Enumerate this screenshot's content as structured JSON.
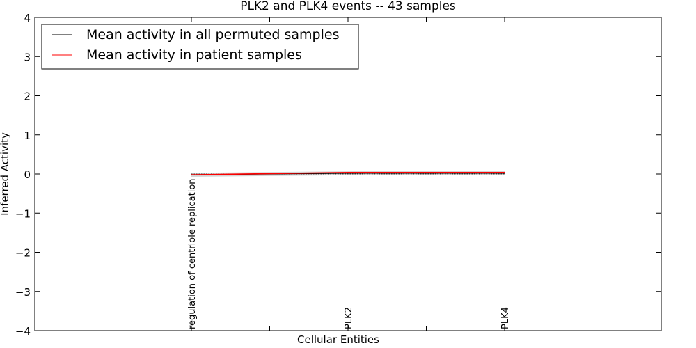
{
  "chart_data": {
    "type": "line",
    "title": "PLK2 and PLK4 events -- 43 samples",
    "xlabel": "Cellular Entities",
    "ylabel": "Inferred Activity",
    "ylim": [
      -4,
      4
    ],
    "xlim": [
      0,
      4
    ],
    "yticks": [
      4,
      3,
      2,
      1,
      0,
      -1,
      -2,
      -3,
      -4
    ],
    "ytick_labels": [
      "4",
      "3",
      "2",
      "1",
      "0",
      "−1",
      "−2",
      "−3",
      "−4"
    ],
    "xticks": [
      0.5,
      1,
      1.5,
      2,
      2.5,
      3,
      3.5
    ],
    "categories": [
      {
        "x": 1,
        "label": "regulation of centriole replication"
      },
      {
        "x": 2,
        "label": "PLK2"
      },
      {
        "x": 3,
        "label": "PLK4"
      }
    ],
    "series": [
      {
        "name": "Mean activity in all permuted samples",
        "color": "#000000",
        "x": [
          1,
          2,
          3
        ],
        "values": [
          -0.02,
          0.02,
          0.02
        ]
      },
      {
        "name": "Mean activity in patient samples",
        "color": "#ff0000",
        "x": [
          1,
          2,
          3
        ],
        "values": [
          -0.02,
          0.04,
          0.04
        ]
      }
    ],
    "band": {
      "x": [
        1,
        2,
        3
      ],
      "lower": [
        -0.07,
        -0.03,
        -0.03
      ],
      "upper": [
        0.03,
        0.07,
        0.08
      ],
      "color": "#c8c8c8"
    },
    "reference_line": 0,
    "legend": {
      "location": "top-left",
      "entries": [
        {
          "label": "Mean activity in all permuted samples",
          "color": "#000000"
        },
        {
          "label": "Mean activity in patient samples",
          "color": "#ff0000"
        }
      ]
    }
  }
}
